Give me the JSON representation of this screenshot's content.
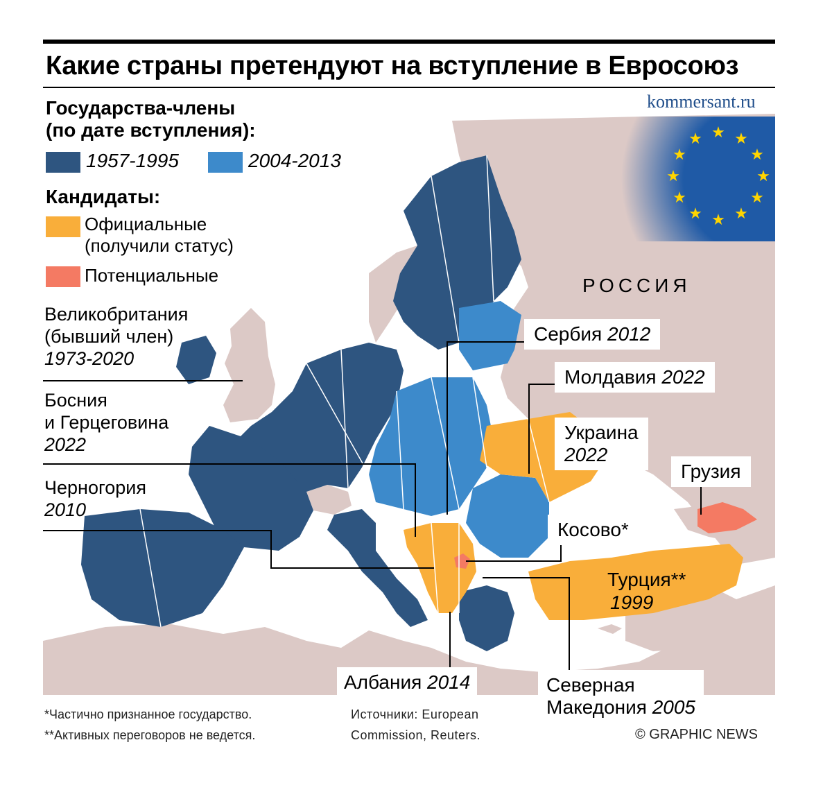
{
  "title": "Какие страны претендуют на вступление в Евросоюз",
  "source_site": "kommersant.ru",
  "legend": {
    "members_heading_line1": "Государства-члены",
    "members_heading_line2": "(по дате вступления):",
    "members": [
      {
        "label": "1957-1995",
        "color": "#2e5580"
      },
      {
        "label": "2004-2013",
        "color": "#3d8acb"
      }
    ],
    "candidates_heading": "Кандидаты:",
    "candidates": [
      {
        "label_line1": "Официальные",
        "label_line2": "(получили статус)",
        "color": "#f9ae3a"
      },
      {
        "label_line1": "Потенциальные",
        "label_line2": "",
        "color": "#f47a63"
      }
    ]
  },
  "colors": {
    "non_eu_land": "#dcc9c6",
    "sea": "#ffffff",
    "border": "#ffffff",
    "eu_flag_blue": "#1f5aa6",
    "eu_star": "#ffd500"
  },
  "region_label": "РОССИЯ",
  "left_notes": {
    "uk_line1": "Великобритания",
    "uk_line2": "(бывший член)",
    "uk_years": "1973-2020",
    "bosnia_line1": "Босния",
    "bosnia_line2": "и Герцеговина",
    "bosnia_year": "2022",
    "montenegro_name": "Черногория",
    "montenegro_year": "2010"
  },
  "country_labels": {
    "serbia_name": "Сербия",
    "serbia_year": "2012",
    "moldova_name": "Молдавия",
    "moldova_year": "2022",
    "ukraine_name": "Украина",
    "ukraine_year": "2022",
    "georgia_name": "Грузия",
    "kosovo_name": "Косово*",
    "turkey_name": "Турция**",
    "turkey_year": "1999",
    "albania_name": "Албания",
    "albania_year": "2014",
    "macedonia_line1": "Северная",
    "macedonia_line2": "Македония",
    "macedonia_year": "2005"
  },
  "footnotes": {
    "note1": "*Частично признанное государство.",
    "note2": "**Активных переговоров не ведется.",
    "sources_line1": "Источники: European",
    "sources_line2": "Commission, Reuters.",
    "credit": "© GRAPHIC NEWS"
  }
}
